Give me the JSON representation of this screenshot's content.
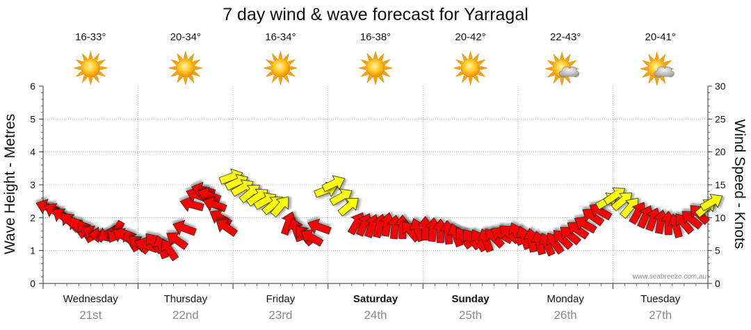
{
  "chart_data": {
    "type": "line",
    "title": "7 day wind & wave forecast for Yarragal",
    "ylabel_left": "Wave Height - Metres",
    "ylabel_right": "Wind Speed - Knots",
    "ylim_left": [
      0,
      6
    ],
    "ylim_right": [
      0,
      30
    ],
    "yticks_left": [
      "0",
      "1",
      "2",
      "3",
      "4",
      "5",
      "6"
    ],
    "yticks_right": [
      "0",
      "5",
      "10",
      "15",
      "20",
      "25",
      "30"
    ],
    "grid": true,
    "watermark": "www.seabreeze.com.au",
    "days": [
      {
        "name": "Wednesday",
        "date": "21st",
        "temp": "16-33°",
        "icon": "sun-icon",
        "bold": false
      },
      {
        "name": "Thursday",
        "date": "22nd",
        "temp": "20-34°",
        "icon": "sun-icon",
        "bold": false
      },
      {
        "name": "Friday",
        "date": "23rd",
        "temp": "16-34°",
        "icon": "sun-icon",
        "bold": false
      },
      {
        "name": "Saturday",
        "date": "24th",
        "temp": "16-38°",
        "icon": "sun-icon",
        "bold": true
      },
      {
        "name": "Sunday",
        "date": "25th",
        "temp": "20-42°",
        "icon": "sun-icon",
        "bold": true
      },
      {
        "name": "Monday",
        "date": "26th",
        "temp": "22-43°",
        "icon": "sun-cloud-icon",
        "bold": false
      },
      {
        "name": "Tuesday",
        "date": "27th",
        "temp": "20-41°",
        "icon": "sun-cloud-icon",
        "bold": false
      }
    ],
    "colors": {
      "strong_wind": "#ff0000",
      "light_wind": "#ffff00",
      "arrow_outline": "#222222",
      "grid": "#999999"
    },
    "series": [
      {
        "name": "wind",
        "points": [
          {
            "t": 0.0,
            "v": 11.6,
            "dir": 200
          },
          {
            "t": 0.08,
            "v": 11.0,
            "dir": 210
          },
          {
            "t": 0.16,
            "v": 10.2,
            "dir": 215
          },
          {
            "t": 0.24,
            "v": 9.4,
            "dir": 225
          },
          {
            "t": 0.32,
            "v": 8.6,
            "dir": 235
          },
          {
            "t": 0.4,
            "v": 8.0,
            "dir": 240
          },
          {
            "t": 0.48,
            "v": 7.6,
            "dir": 210
          },
          {
            "t": 0.56,
            "v": 7.4,
            "dir": 180
          },
          {
            "t": 0.64,
            "v": 7.6,
            "dir": 150
          },
          {
            "t": 0.72,
            "v": 7.8,
            "dir": 120
          },
          {
            "t": 0.8,
            "v": 7.2,
            "dir": 210
          },
          {
            "t": 0.88,
            "v": 6.6,
            "dir": 240
          },
          {
            "t": 0.96,
            "v": 6.0,
            "dir": 220
          },
          {
            "t": 1.04,
            "v": 5.8,
            "dir": 200
          },
          {
            "t": 1.12,
            "v": 6.2,
            "dir": 230
          },
          {
            "t": 1.2,
            "v": 5.6,
            "dir": 250
          },
          {
            "t": 1.28,
            "v": 5.2,
            "dir": 235
          },
          {
            "t": 1.36,
            "v": 6.6,
            "dir": 215
          },
          {
            "t": 1.44,
            "v": 8.4,
            "dir": 200
          },
          {
            "t": 1.52,
            "v": 12.0,
            "dir": 195
          },
          {
            "t": 1.58,
            "v": 13.4,
            "dir": 200
          },
          {
            "t": 1.64,
            "v": 14.2,
            "dir": 195
          },
          {
            "t": 1.7,
            "v": 13.4,
            "dir": 200
          },
          {
            "t": 1.76,
            "v": 12.0,
            "dir": 200
          },
          {
            "t": 1.82,
            "v": 10.0,
            "dir": 210
          },
          {
            "t": 1.88,
            "v": 8.6,
            "dir": 215
          },
          {
            "t": 1.94,
            "v": 16.2,
            "dir": 340
          },
          {
            "t": 2.0,
            "v": 15.4,
            "dir": 335
          },
          {
            "t": 2.06,
            "v": 14.6,
            "dir": 330
          },
          {
            "t": 2.14,
            "v": 13.8,
            "dir": 320
          },
          {
            "t": 2.22,
            "v": 13.2,
            "dir": 325
          },
          {
            "t": 2.3,
            "v": 12.6,
            "dir": 330
          },
          {
            "t": 2.38,
            "v": 12.0,
            "dir": 320
          },
          {
            "t": 2.46,
            "v": 11.8,
            "dir": 310
          },
          {
            "t": 2.54,
            "v": 9.2,
            "dir": 290
          },
          {
            "t": 2.62,
            "v": 8.2,
            "dir": 250
          },
          {
            "t": 2.7,
            "v": 7.4,
            "dir": 230
          },
          {
            "t": 2.78,
            "v": 7.0,
            "dir": 210
          },
          {
            "t": 2.86,
            "v": 8.6,
            "dir": 200
          },
          {
            "t": 2.94,
            "v": 14.2,
            "dir": 340
          },
          {
            "t": 3.02,
            "v": 15.2,
            "dir": 335
          },
          {
            "t": 3.1,
            "v": 13.2,
            "dir": 330
          },
          {
            "t": 3.18,
            "v": 11.8,
            "dir": 320
          },
          {
            "t": 3.26,
            "v": 9.2,
            "dir": 300
          },
          {
            "t": 3.34,
            "v": 9.0,
            "dir": 295
          },
          {
            "t": 3.42,
            "v": 8.8,
            "dir": 290
          },
          {
            "t": 3.5,
            "v": 8.8,
            "dir": 285
          },
          {
            "t": 3.58,
            "v": 9.0,
            "dir": 280
          },
          {
            "t": 3.66,
            "v": 8.6,
            "dir": 275
          },
          {
            "t": 3.74,
            "v": 8.6,
            "dir": 270
          },
          {
            "t": 3.82,
            "v": 8.0,
            "dir": 230
          },
          {
            "t": 3.9,
            "v": 8.2,
            "dir": 250
          },
          {
            "t": 3.98,
            "v": 8.4,
            "dir": 270
          },
          {
            "t": 4.06,
            "v": 8.2,
            "dir": 275
          },
          {
            "t": 4.14,
            "v": 8.0,
            "dir": 270
          },
          {
            "t": 4.22,
            "v": 7.8,
            "dir": 265
          },
          {
            "t": 4.3,
            "v": 7.4,
            "dir": 250
          },
          {
            "t": 4.38,
            "v": 7.0,
            "dir": 235
          },
          {
            "t": 4.46,
            "v": 6.8,
            "dir": 230
          },
          {
            "t": 4.54,
            "v": 6.6,
            "dir": 240
          },
          {
            "t": 4.62,
            "v": 6.6,
            "dir": 250
          },
          {
            "t": 4.7,
            "v": 7.0,
            "dir": 225
          },
          {
            "t": 4.78,
            "v": 7.4,
            "dir": 210
          },
          {
            "t": 4.86,
            "v": 7.6,
            "dir": 220
          },
          {
            "t": 4.94,
            "v": 7.6,
            "dir": 245
          },
          {
            "t": 5.02,
            "v": 7.0,
            "dir": 250
          },
          {
            "t": 5.1,
            "v": 6.6,
            "dir": 260
          },
          {
            "t": 5.18,
            "v": 6.2,
            "dir": 255
          },
          {
            "t": 5.26,
            "v": 6.0,
            "dir": 245
          },
          {
            "t": 5.34,
            "v": 6.2,
            "dir": 235
          },
          {
            "t": 5.42,
            "v": 6.8,
            "dir": 225
          },
          {
            "t": 5.5,
            "v": 7.4,
            "dir": 220
          },
          {
            "t": 5.58,
            "v": 8.2,
            "dir": 215
          },
          {
            "t": 5.66,
            "v": 9.0,
            "dir": 210
          },
          {
            "t": 5.74,
            "v": 10.2,
            "dir": 215
          },
          {
            "t": 5.82,
            "v": 11.0,
            "dir": 210
          },
          {
            "t": 5.9,
            "v": 12.6,
            "dir": 330
          },
          {
            "t": 5.98,
            "v": 13.4,
            "dir": 325
          },
          {
            "t": 6.06,
            "v": 12.6,
            "dir": 320
          },
          {
            "t": 6.14,
            "v": 11.6,
            "dir": 310
          },
          {
            "t": 6.22,
            "v": 10.8,
            "dir": 300
          },
          {
            "t": 6.3,
            "v": 10.2,
            "dir": 295
          },
          {
            "t": 6.38,
            "v": 9.8,
            "dir": 290
          },
          {
            "t": 6.46,
            "v": 9.4,
            "dir": 280
          },
          {
            "t": 6.54,
            "v": 9.2,
            "dir": 270
          },
          {
            "t": 6.62,
            "v": 8.8,
            "dir": 255
          },
          {
            "t": 6.7,
            "v": 9.2,
            "dir": 230
          },
          {
            "t": 6.78,
            "v": 9.8,
            "dir": 220
          },
          {
            "t": 6.86,
            "v": 10.6,
            "dir": 225
          },
          {
            "t": 6.94,
            "v": 11.6,
            "dir": 320
          },
          {
            "t": 7.0,
            "v": 12.4,
            "dir": 330
          }
        ]
      }
    ]
  }
}
